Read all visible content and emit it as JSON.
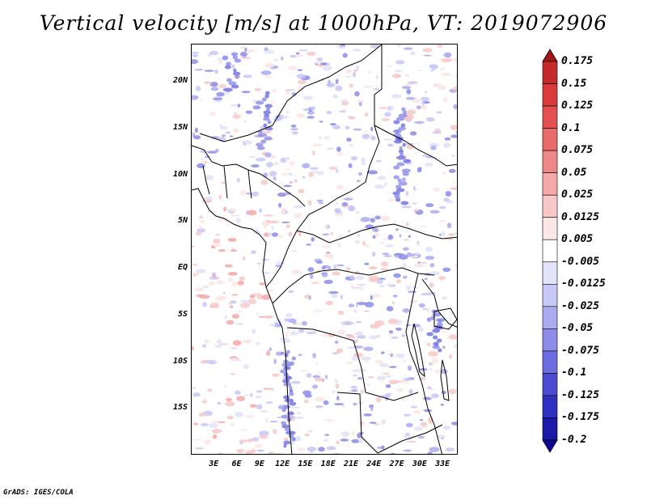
{
  "title": "Vertical velocity [m/s] at 1000hPa, VT: 2019072906",
  "credit": "GrADS: IGES/COLA",
  "map": {
    "lon_range": [
      0,
      35
    ],
    "lat_range": [
      -20,
      24
    ],
    "lat_ticks": [
      {
        "label": "20N",
        "value": 20
      },
      {
        "label": "15N",
        "value": 15
      },
      {
        "label": "10N",
        "value": 10
      },
      {
        "label": "5N",
        "value": 5
      },
      {
        "label": "EQ",
        "value": 0
      },
      {
        "label": "5S",
        "value": -5
      },
      {
        "label": "10S",
        "value": -10
      },
      {
        "label": "15S",
        "value": -15
      }
    ],
    "lon_ticks": [
      {
        "label": "3E",
        "value": 3
      },
      {
        "label": "6E",
        "value": 6
      },
      {
        "label": "9E",
        "value": 9
      },
      {
        "label": "12E",
        "value": 12
      },
      {
        "label": "15E",
        "value": 15
      },
      {
        "label": "18E",
        "value": 18
      },
      {
        "label": "21E",
        "value": 21
      },
      {
        "label": "24E",
        "value": 24
      },
      {
        "label": "27E",
        "value": 27
      },
      {
        "label": "30E",
        "value": 30
      },
      {
        "label": "33E",
        "value": 33
      }
    ]
  },
  "colorbar": {
    "levels": [
      "0.175",
      "0.15",
      "0.125",
      "0.1",
      "0.075",
      "0.05",
      "0.025",
      "0.0125",
      "0.005",
      "-0.005",
      "-0.0125",
      "-0.025",
      "-0.05",
      "-0.075",
      "-0.1",
      "-0.125",
      "-0.175",
      "-0.2"
    ],
    "colors": [
      "#a01818",
      "#c42a2a",
      "#d83a3a",
      "#e45050",
      "#e86a6a",
      "#ee8888",
      "#f4a8a8",
      "#f8c8c8",
      "#fce6e6",
      "#ffffff",
      "#e2e2fa",
      "#c8c8f4",
      "#aaaaf0",
      "#8c8ce8",
      "#6c6ce0",
      "#4c4cd2",
      "#3030c0",
      "#1a1aa8",
      "#100890"
    ]
  }
}
